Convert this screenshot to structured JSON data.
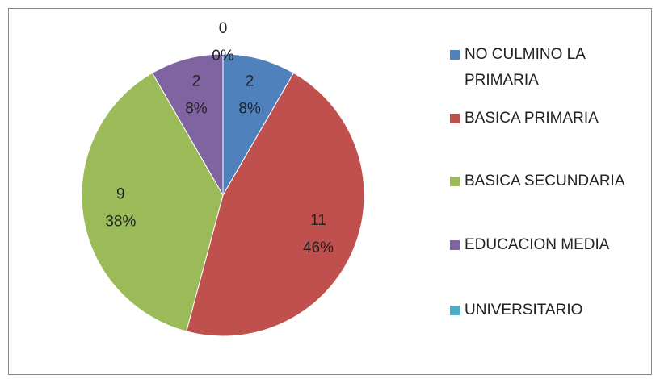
{
  "chart_data": {
    "type": "pie",
    "categories": [
      "NO CULMINO LA PRIMARIA",
      "BASICA PRIMARIA",
      "BASICA SECUNDARIA",
      "EDUCACION MEDIA",
      "UNIVERSITARIO"
    ],
    "values": [
      2,
      11,
      9,
      2,
      0
    ],
    "percent_labels": [
      "8%",
      "46%",
      "38%",
      "8%",
      "0%"
    ],
    "colors": [
      "#4f81bd",
      "#c0504d",
      "#9bbb59",
      "#8064a2",
      "#4bacc6"
    ],
    "legend": "right"
  }
}
